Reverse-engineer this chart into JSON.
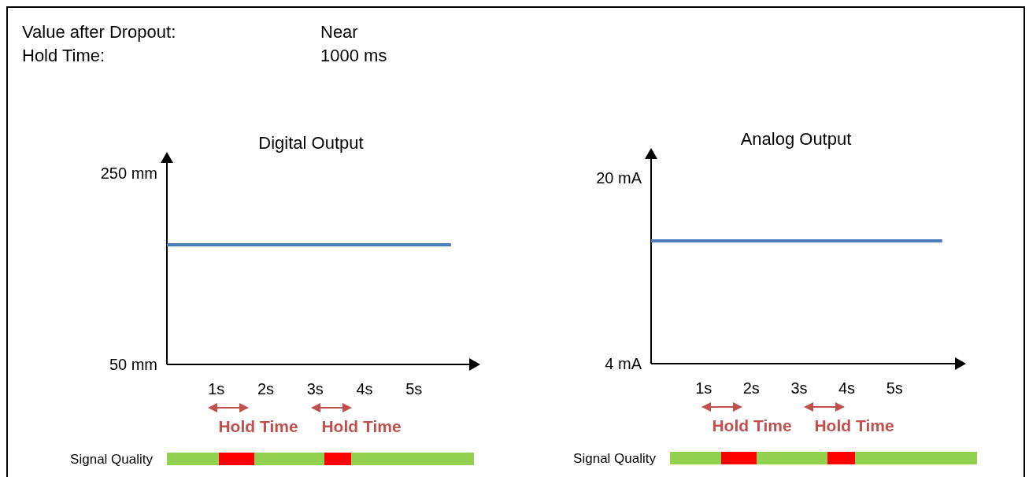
{
  "chart_data": [
    {
      "type": "other",
      "annotations": [
        "Value after Dropout:",
        "Near",
        "Hold Time:",
        "1000 ms"
      ]
    },
    {
      "type": "line",
      "title": "Digital Output",
      "x": [
        0,
        5.75
      ],
      "xlim": [
        0,
        6.15
      ],
      "ylim": [
        50,
        262
      ],
      "xticks": [
        {
          "value": 1,
          "label": "1s"
        },
        {
          "value": 2,
          "label": "2s"
        },
        {
          "value": 3,
          "label": "3s"
        },
        {
          "value": 4,
          "label": "4s"
        },
        {
          "value": 5,
          "label": "5s"
        }
      ],
      "yticks": [
        {
          "value": 50,
          "label": "50 mm"
        },
        {
          "value": 250,
          "label": "250 mm"
        }
      ],
      "series": [
        {
          "color": "#4a7ebb",
          "values": [
            175,
            175
          ]
        }
      ],
      "annotations": [
        "Hold Time",
        "Hold Time",
        "Signal Quality"
      ]
    },
    {
      "type": "line",
      "title": "Analog Output",
      "x": [
        -0.1,
        6.0
      ],
      "xlim": [
        -0.1,
        6.3
      ],
      "ylim": [
        4,
        21.8
      ],
      "xticks": [
        {
          "value": 1,
          "label": "1s"
        },
        {
          "value": 2,
          "label": "2s"
        },
        {
          "value": 3,
          "label": "3s"
        },
        {
          "value": 4,
          "label": "4s"
        },
        {
          "value": 5,
          "label": "5s"
        }
      ],
      "yticks": [
        {
          "value": 4,
          "label": "4 mA"
        },
        {
          "value": 20,
          "label": "20 mA"
        }
      ],
      "series": [
        {
          "color": "#4a7ebb",
          "values": [
            14.6,
            14.6
          ]
        }
      ],
      "annotations": [
        "Hold Time",
        "Hold Time",
        "Signal Quality"
      ]
    }
  ]
}
